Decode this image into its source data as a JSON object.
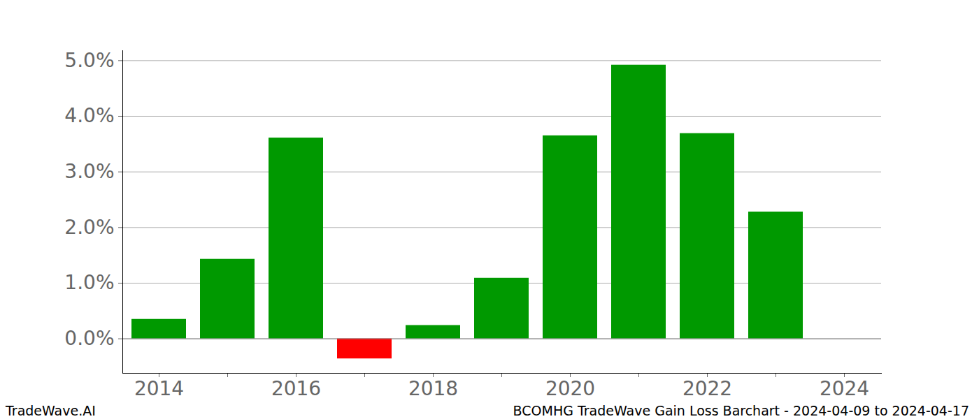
{
  "chart_data": {
    "type": "bar",
    "categories": [
      "2014",
      null,
      "2016",
      null,
      "2018",
      null,
      "2020",
      null,
      "2022",
      null,
      "2024"
    ],
    "values": [
      0.35,
      1.43,
      3.61,
      -0.36,
      0.24,
      1.09,
      3.65,
      4.92,
      3.69,
      2.28,
      null
    ],
    "colors": [
      "#009900",
      "#009900",
      "#009900",
      "#ff0000",
      "#009900",
      "#009900",
      "#009900",
      "#009900",
      "#009900",
      "#009900",
      null
    ],
    "ylim": [
      -0.62,
      5.18
    ],
    "yticks": [
      {
        "value": 0,
        "label": "0.0%"
      },
      {
        "value": 1,
        "label": "1.0%"
      },
      {
        "value": 2,
        "label": "2.0%"
      },
      {
        "value": 3,
        "label": "3.0%"
      },
      {
        "value": 4,
        "label": "4.0%"
      },
      {
        "value": 5,
        "label": "5.0%"
      }
    ],
    "grid": true,
    "annotations": [
      "TradeWave.AI",
      "BCOMHG TradeWave Gain Loss Barchart - 2024-04-09 to 2024-04-17"
    ]
  }
}
